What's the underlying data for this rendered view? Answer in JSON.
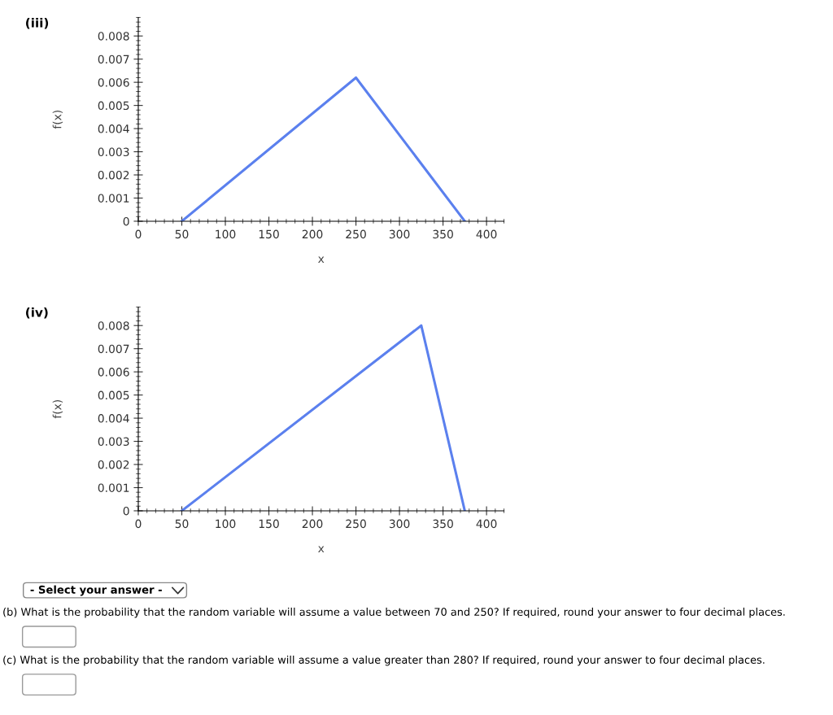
{
  "chart_data": [
    {
      "type": "line",
      "title": "(iii)",
      "xlabel": "x",
      "ylabel": "f(x)",
      "x": [
        50,
        250,
        375
      ],
      "series": [
        {
          "color": "#5b80ee",
          "values": [
            0,
            0.0062,
            0
          ]
        }
      ],
      "xlim": [
        0,
        420
      ],
      "ylim": [
        0,
        0.0088
      ],
      "xticks": [
        0,
        50,
        100,
        150,
        200,
        250,
        300,
        350,
        400
      ],
      "yticks": [
        0,
        0.001,
        0.002,
        0.003,
        0.004,
        0.005,
        0.006,
        0.007,
        0.008
      ],
      "grid": false,
      "marker": "none",
      "line_style": "solid"
    },
    {
      "type": "line",
      "title": "(iv)",
      "xlabel": "x",
      "ylabel": "f(x)",
      "x": [
        50,
        325,
        375
      ],
      "series": [
        {
          "color": "#5b80ee",
          "values": [
            0,
            0.008,
            0
          ]
        }
      ],
      "xlim": [
        0,
        420
      ],
      "ylim": [
        0,
        0.0088
      ],
      "xticks": [
        0,
        50,
        100,
        150,
        200,
        250,
        300,
        350,
        400
      ],
      "yticks": [
        0,
        0.001,
        0.002,
        0.003,
        0.004,
        0.005,
        0.006,
        0.007,
        0.008
      ],
      "grid": false,
      "marker": "none",
      "line_style": "solid",
      "annotations": [
        "- Select your answer -",
        "(b) What is the probability that the random variable will assume a value between 70 and 250? If required, round your answer to four decimal places.",
        "(c) What is the probability that the random variable will assume a value greater than 280? If required, round your answer to four decimal places."
      ]
    }
  ]
}
